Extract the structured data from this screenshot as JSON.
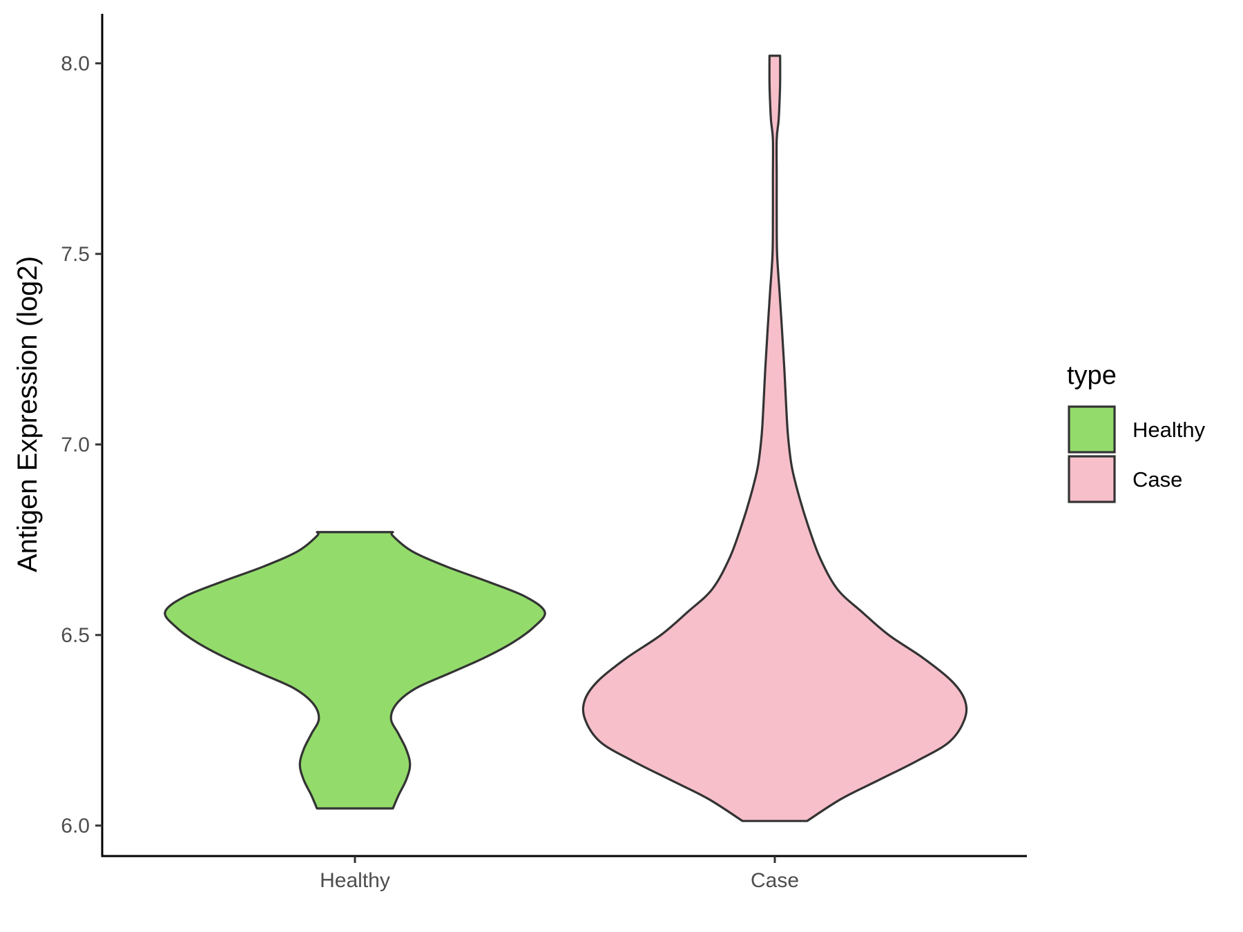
{
  "chart_data": {
    "type": "violin",
    "ylabel": "Antigen Expression (log2)",
    "xlabel": "",
    "ylim": [
      5.92,
      8.13
    ],
    "yticks": [
      6.0,
      6.5,
      7.0,
      7.5,
      8.0
    ],
    "ytick_labels": [
      "6.0",
      "6.5",
      "7.0",
      "7.5",
      "8.0"
    ],
    "categories": [
      "Healthy",
      "Case"
    ],
    "grid": false,
    "legend": {
      "title": "type",
      "position": "right",
      "entries": [
        "Healthy",
        "Case"
      ]
    },
    "series": [
      {
        "name": "Healthy",
        "color": "#93dc6b",
        "min": 6.045,
        "max": 6.77,
        "density_profile": [
          [
            6.045,
            0.2
          ],
          [
            6.08,
            0.23
          ],
          [
            6.12,
            0.27
          ],
          [
            6.16,
            0.29
          ],
          [
            6.2,
            0.27
          ],
          [
            6.24,
            0.23
          ],
          [
            6.28,
            0.19
          ],
          [
            6.32,
            0.22
          ],
          [
            6.36,
            0.32
          ],
          [
            6.4,
            0.5
          ],
          [
            6.44,
            0.68
          ],
          [
            6.48,
            0.83
          ],
          [
            6.52,
            0.94
          ],
          [
            6.56,
            1.0
          ],
          [
            6.6,
            0.9
          ],
          [
            6.64,
            0.7
          ],
          [
            6.68,
            0.48
          ],
          [
            6.72,
            0.3
          ],
          [
            6.76,
            0.2
          ],
          [
            6.77,
            0.2
          ]
        ]
      },
      {
        "name": "Case",
        "color": "#f7bfca",
        "min": 6.012,
        "max": 8.02,
        "density_profile": [
          [
            6.012,
            0.17
          ],
          [
            6.07,
            0.35
          ],
          [
            6.12,
            0.55
          ],
          [
            6.17,
            0.75
          ],
          [
            6.22,
            0.92
          ],
          [
            6.28,
            1.0
          ],
          [
            6.33,
            1.0
          ],
          [
            6.38,
            0.93
          ],
          [
            6.44,
            0.78
          ],
          [
            6.5,
            0.6
          ],
          [
            6.56,
            0.46
          ],
          [
            6.62,
            0.33
          ],
          [
            6.7,
            0.24
          ],
          [
            6.78,
            0.18
          ],
          [
            6.86,
            0.13
          ],
          [
            6.94,
            0.09
          ],
          [
            7.02,
            0.07
          ],
          [
            7.1,
            0.06
          ],
          [
            7.2,
            0.05
          ],
          [
            7.3,
            0.038
          ],
          [
            7.4,
            0.025
          ],
          [
            7.5,
            0.012
          ],
          [
            7.6,
            0.01
          ],
          [
            7.7,
            0.01
          ],
          [
            7.8,
            0.01
          ],
          [
            7.85,
            0.02
          ],
          [
            7.9,
            0.025
          ],
          [
            7.95,
            0.028
          ],
          [
            8.02,
            0.028
          ]
        ]
      }
    ]
  }
}
